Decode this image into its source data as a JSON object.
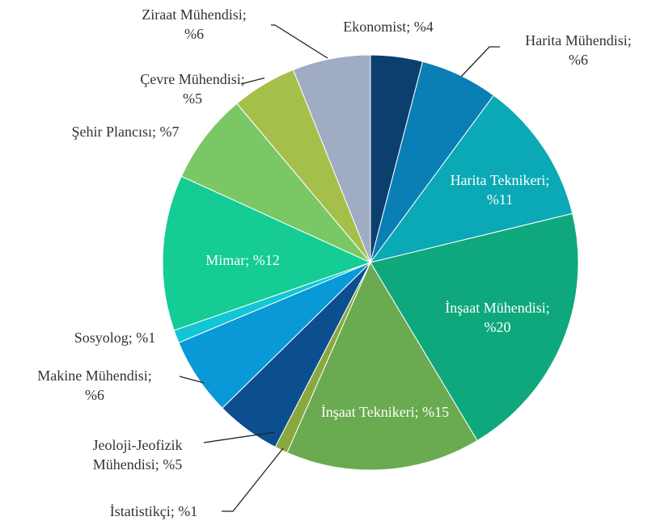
{
  "chart_data": {
    "type": "pie",
    "values": [
      4,
      6,
      11,
      20,
      15,
      1,
      5,
      6,
      1,
      12,
      7,
      5,
      6
    ],
    "value_labels": [
      "Ekonomist; %4",
      "Harita Mühendisi; %6",
      "Harita Teknikeri; %11",
      "İnşaat Mühendisi; %20",
      "İnşaat Teknikeri; %15",
      "İstatistikçi; %1",
      "Jeoloji-Jeofizik Mühendisi; %5",
      "Makine Mühendisi; %6",
      "Sosyolog; %1",
      "Mimar; %12",
      "Şehir Plancısı; %7",
      "Çevre Mühendisi; %5",
      "Ziraat Mühendisi; %6"
    ],
    "colors": [
      "#0b3f6e",
      "#0a7fb5",
      "#0aa9b5",
      "#0ea87c",
      "#6aaa50",
      "#8aa840",
      "#0b4f8f",
      "#0999d6",
      "#13c6d6",
      "#14cc94",
      "#79c865",
      "#a5c04a",
      "#a0abc4"
    ]
  }
}
